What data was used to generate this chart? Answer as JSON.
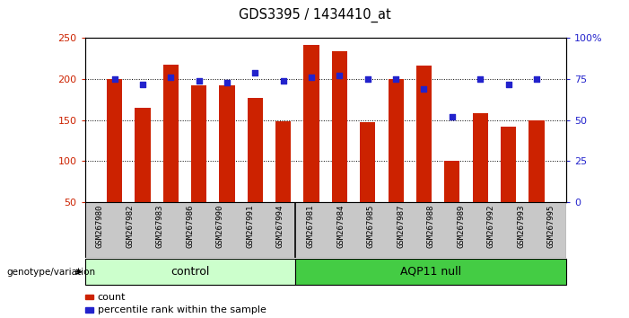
{
  "title": "GDS3395 / 1434410_at",
  "samples": [
    "GSM267980",
    "GSM267982",
    "GSM267983",
    "GSM267986",
    "GSM267990",
    "GSM267991",
    "GSM267994",
    "GSM267981",
    "GSM267984",
    "GSM267985",
    "GSM267987",
    "GSM267988",
    "GSM267989",
    "GSM267992",
    "GSM267993",
    "GSM267995"
  ],
  "counts": [
    200,
    165,
    218,
    192,
    192,
    177,
    148,
    242,
    234,
    147,
    200,
    217,
    100,
    158,
    142,
    150
  ],
  "percentile_ranks": [
    75,
    72,
    76,
    74,
    73,
    79,
    74,
    76,
    77,
    75,
    75,
    69,
    52,
    75,
    72,
    75
  ],
  "n_control": 7,
  "bar_color": "#cc2200",
  "dot_color": "#2222cc",
  "ylim_left": [
    50,
    250
  ],
  "ylim_right": [
    0,
    100
  ],
  "yticks_left": [
    50,
    100,
    150,
    200,
    250
  ],
  "yticks_right": [
    0,
    25,
    50,
    75,
    100
  ],
  "control_color": "#ccffcc",
  "aqp11_color": "#44cc44",
  "xlabel_area_color": "#c8c8c8",
  "grid_color": "black",
  "control_label": "control",
  "aqp11_label": "AQP11 null",
  "genotype_label": "genotype/variation",
  "legend_count": "count",
  "legend_percentile": "percentile rank within the sample"
}
